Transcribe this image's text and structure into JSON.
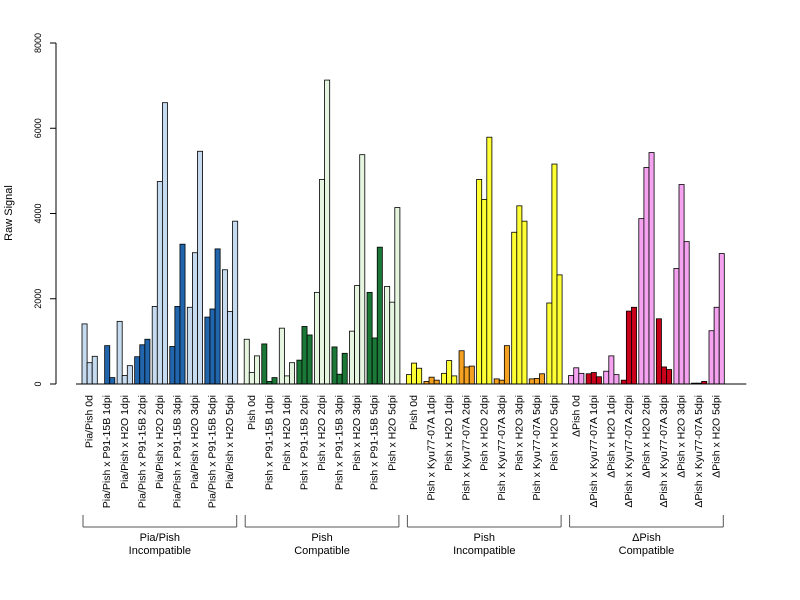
{
  "chart_data": {
    "type": "bar",
    "ylabel": "Raw Signal",
    "ylim": [
      0,
      8000
    ],
    "yticks": [
      "0",
      "2000",
      "4000",
      "6000",
      "8000"
    ],
    "grid": false,
    "bars_per_category": 3,
    "groups": [
      {
        "name_line1": "Pia/Pish",
        "name_line2": "Incompatible",
        "light_color": "#c6dbef",
        "dark_color": "#2166ac",
        "categories": [
          {
            "label": "Pia/Pish 0d",
            "values": [
              1410,
              500,
              650
            ],
            "shade": "light"
          },
          {
            "label": "Pia/Pish x P91-15B 1dpi",
            "values": [
              0,
              900,
              150
            ],
            "shade": "dark"
          },
          {
            "label": "Pia/Pish x H2O 1dpi",
            "values": [
              1470,
              200,
              430
            ],
            "shade": "light"
          },
          {
            "label": "Pia/Pish x P91-15B 2dpi",
            "values": [
              640,
              920,
              1050
            ],
            "shade": "dark"
          },
          {
            "label": "Pia/Pish x H2O 2dpi",
            "values": [
              1820,
              4750,
              6600
            ],
            "shade": "light"
          },
          {
            "label": "Pia/Pish x P91-15B 3dpi",
            "values": [
              880,
              1820,
              3280
            ],
            "shade": "dark"
          },
          {
            "label": "Pia/Pish x H2O 3dpi",
            "values": [
              1800,
              3080,
              5460
            ],
            "shade": "light"
          },
          {
            "label": "Pia/Pish x P91-15B 5dpi",
            "values": [
              1570,
              1760,
              3170
            ],
            "shade": "dark"
          },
          {
            "label": "Pia/Pish x H2O 5dpi",
            "values": [
              2680,
              1700,
              3820
            ],
            "shade": "light"
          }
        ]
      },
      {
        "name_line1": "Pish",
        "name_line2": "Compatible",
        "light_color": "#e5f5e0",
        "dark_color": "#1b7837",
        "categories": [
          {
            "label": "Pish 0d",
            "values": [
              1050,
              270,
              660
            ],
            "shade": "light"
          },
          {
            "label": "Pish x P91-15B 1dpi",
            "values": [
              940,
              60,
              150
            ],
            "shade": "dark"
          },
          {
            "label": "Pish x H2O 1dpi",
            "values": [
              1310,
              190,
              500
            ],
            "shade": "light"
          },
          {
            "label": "Pish x P91-15B 2dpi",
            "values": [
              560,
              1350,
              1150
            ],
            "shade": "dark"
          },
          {
            "label": "Pish x H2O 2dpi",
            "values": [
              2150,
              4800,
              7130
            ],
            "shade": "light"
          },
          {
            "label": "Pish x P91-15B 3dpi",
            "values": [
              870,
              230,
              720
            ],
            "shade": "dark"
          },
          {
            "label": "Pish x H2O 3dpi",
            "values": [
              1240,
              2310,
              5380
            ],
            "shade": "light"
          },
          {
            "label": "Pish x P91-15B 5dpi",
            "values": [
              2150,
              1080,
              3210
            ],
            "shade": "dark"
          },
          {
            "label": "Pish x H2O 5dpi",
            "values": [
              2290,
              1920,
              4140
            ],
            "shade": "light"
          }
        ]
      },
      {
        "name_line1": "Pish",
        "name_line2": "Incompatible",
        "light_color": "#ffff33",
        "dark_color": "#f4a020",
        "categories": [
          {
            "label": "Pish 0d",
            "values": [
              220,
              490,
              370
            ],
            "shade": "light"
          },
          {
            "label": "Pish x Kyu77-07A 1dpi",
            "values": [
              60,
              160,
              90
            ],
            "shade": "dark"
          },
          {
            "label": "Pish x H2O 1dpi",
            "values": [
              250,
              550,
              190
            ],
            "shade": "light"
          },
          {
            "label": "Pish x Kyu77-07A 2dpi",
            "values": [
              780,
              400,
              420
            ],
            "shade": "dark"
          },
          {
            "label": "Pish x H2O 2dpi",
            "values": [
              4800,
              4330,
              5790
            ],
            "shade": "light"
          },
          {
            "label": "Pish x Kyu77-07A 3dpi",
            "values": [
              120,
              90,
              900
            ],
            "shade": "dark"
          },
          {
            "label": "Pish x H2O 3dpi",
            "values": [
              3560,
              4180,
              3820
            ],
            "shade": "light"
          },
          {
            "label": "Pish x Kyu77-07A 5dpi",
            "values": [
              120,
              130,
              240
            ],
            "shade": "dark"
          },
          {
            "label": "Pish x H2O 5dpi",
            "values": [
              1900,
              5160,
              2560
            ],
            "shade": "light"
          }
        ]
      },
      {
        "name_line1": "ΔPish",
        "name_line2": "Compatible",
        "light_color": "#f5a3f0",
        "dark_color": "#c8001a",
        "categories": [
          {
            "label": "ΔPish 0d",
            "values": [
              200,
              380,
              250
            ],
            "shade": "light"
          },
          {
            "label": "ΔPish x Kyu77-07A 1dpi",
            "values": [
              240,
              270,
              170
            ],
            "shade": "dark"
          },
          {
            "label": "ΔPish x H2O 1dpi",
            "values": [
              300,
              660,
              220
            ],
            "shade": "light"
          },
          {
            "label": "ΔPish x Kyu77-07A 2dpi",
            "values": [
              90,
              1710,
              1800
            ],
            "shade": "dark"
          },
          {
            "label": "ΔPish x H2O 2dpi",
            "values": [
              3880,
              5080,
              5430
            ],
            "shade": "light"
          },
          {
            "label": "ΔPish x Kyu77-07A 3dpi",
            "values": [
              1530,
              400,
              340
            ],
            "shade": "dark"
          },
          {
            "label": "ΔPish x H2O 3dpi",
            "values": [
              2710,
              4680,
              3340
            ],
            "shade": "light"
          },
          {
            "label": "ΔPish x Kyu77-07A 5dpi",
            "values": [
              20,
              20,
              60
            ],
            "shade": "dark"
          },
          {
            "label": "ΔPish x H2O 5dpi",
            "values": [
              1250,
              1800,
              3060
            ],
            "shade": "light"
          }
        ]
      }
    ]
  }
}
